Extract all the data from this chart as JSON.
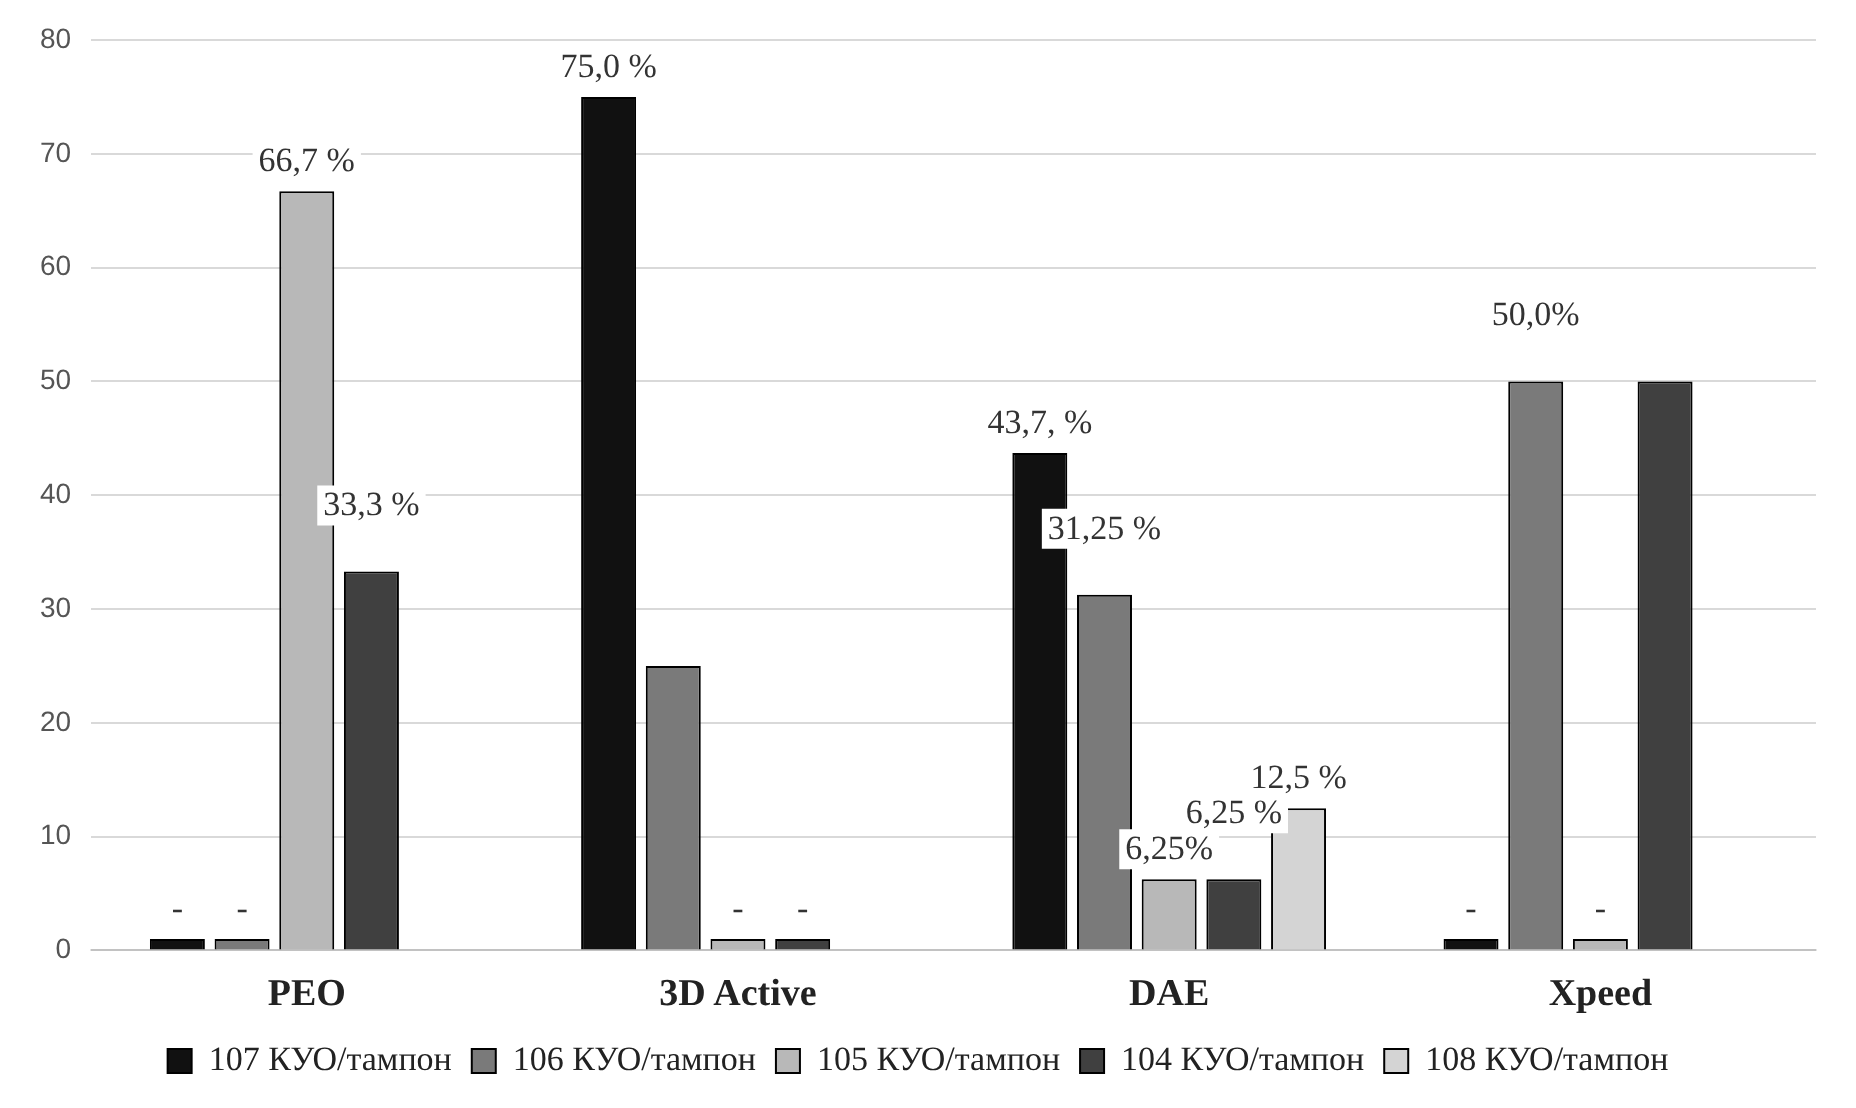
{
  "chart_data": {
    "type": "bar",
    "categories": [
      "PEO",
      "3D Active",
      "DAE",
      "Xpeed"
    ],
    "series": [
      {
        "name": "107 КУО/тампон",
        "color": "#111111",
        "values": [
          1,
          75,
          43.7,
          1
        ],
        "value_labels": [
          "-",
          "75,0 %",
          "43,7, %",
          "-"
        ]
      },
      {
        "name": "106 КУО/тампон",
        "color": "#7a7a7a",
        "values": [
          1,
          25,
          31.25,
          50
        ],
        "value_labels": [
          "-",
          null,
          "31,25 %",
          "50,0%"
        ]
      },
      {
        "name": "105 КУО/тампон",
        "color": "#b8b8b8",
        "values": [
          66.7,
          1,
          6.25,
          1
        ],
        "value_labels": [
          "66,7 %",
          "-",
          "6,25%",
          "-"
        ]
      },
      {
        "name": "104 КУО/тампон",
        "color": "#404040",
        "values": [
          33.3,
          1,
          6.25,
          50
        ],
        "value_labels": [
          "33,3 %",
          "-",
          "6,25 %",
          null
        ]
      },
      {
        "name": "108 КУО/тампон",
        "color": "#d4d4d4",
        "values": [
          null,
          null,
          12.5,
          null
        ],
        "value_labels": [
          null,
          null,
          "12,5 %",
          null
        ]
      }
    ],
    "ylim": [
      0,
      80
    ],
    "yticks": [
      0,
      10,
      20,
      30,
      40,
      50,
      60,
      70,
      80
    ],
    "grid": "y",
    "legend": "bottom"
  }
}
